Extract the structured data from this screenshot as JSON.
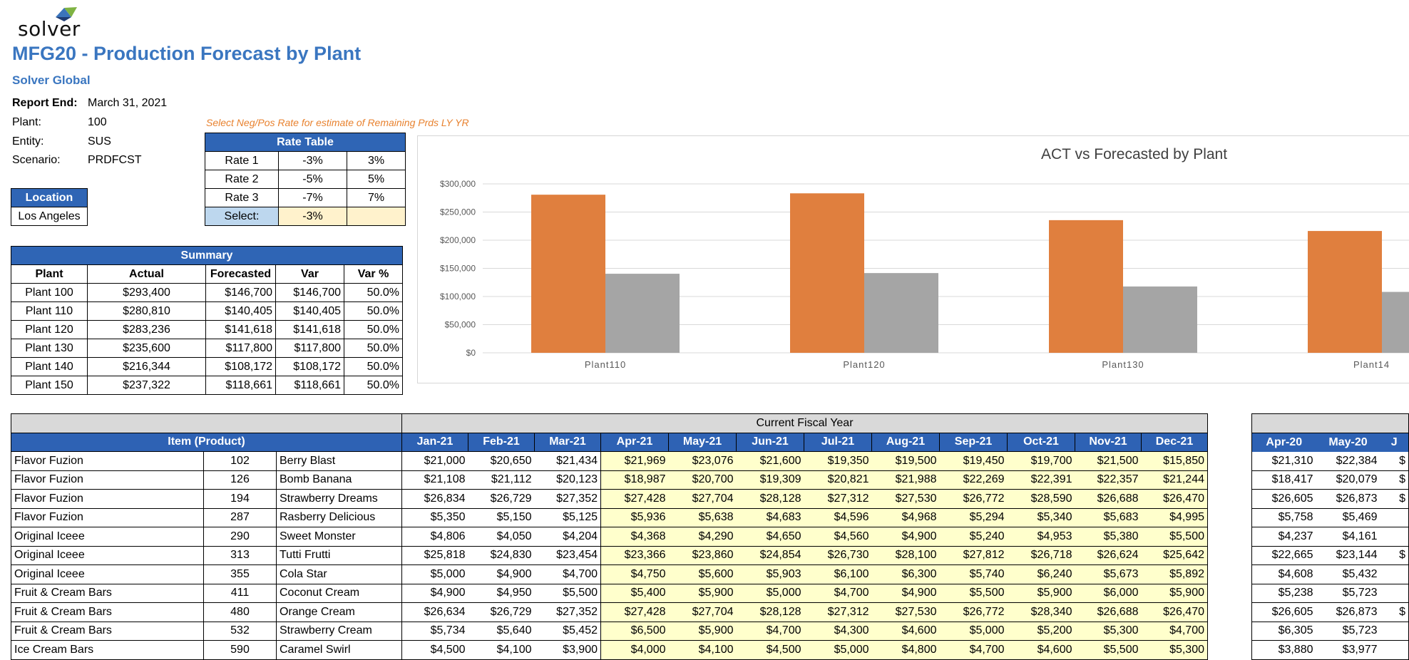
{
  "logo": {
    "text": "solver",
    "icon": "solver-triangle-logo-icon",
    "colors": [
      "#3b74bb",
      "#7fb342",
      "#1f3c73"
    ]
  },
  "report": {
    "title": "MFG20 - Production Forecast by Plant",
    "company": "Solver Global",
    "fields": [
      {
        "label": "Report End:",
        "value": "March 31, 2021"
      },
      {
        "label": "Plant:",
        "value": "100"
      },
      {
        "label": "Entity:",
        "value": "SUS"
      },
      {
        "label": "Scenario:",
        "value": "PRDFCST"
      }
    ],
    "hint": "Select Neg/Pos Rate for estimate of Remaining Prds LY YR"
  },
  "location": {
    "header": "Location",
    "value": "Los Angeles"
  },
  "rate_table": {
    "header": "Rate Table",
    "rows": [
      [
        "Rate 1",
        "-3%",
        "3%"
      ],
      [
        "Rate 2",
        "-5%",
        "5%"
      ],
      [
        "Rate 3",
        "-7%",
        "7%"
      ]
    ],
    "select_label": "Select:",
    "select_value": "-3%"
  },
  "summary": {
    "header": "Summary",
    "columns": [
      "Plant",
      "Actual",
      "Forecasted",
      "Var",
      "Var %"
    ],
    "rows": [
      [
        "Plant 100",
        "$293,400",
        "$146,700",
        "$146,700",
        "50.0%"
      ],
      [
        "Plant 110",
        "$280,810",
        "$140,405",
        "$140,405",
        "50.0%"
      ],
      [
        "Plant 120",
        "$283,236",
        "$141,618",
        "$141,618",
        "50.0%"
      ],
      [
        "Plant 130",
        "$235,600",
        "$117,800",
        "$117,800",
        "50.0%"
      ],
      [
        "Plant 140",
        "$216,344",
        "$108,172",
        "$108,172",
        "50.0%"
      ],
      [
        "Plant 150",
        "$237,322",
        "$118,661",
        "$118,661",
        "50.0%"
      ]
    ]
  },
  "chart_data": {
    "type": "bar",
    "title": "ACT vs Forecasted by Plant",
    "categories": [
      "Plant110",
      "Plant120",
      "Plant130",
      "Plant14"
    ],
    "series": [
      {
        "values": [
          280810,
          283236,
          235600,
          216344
        ],
        "color": "#e07f3e"
      },
      {
        "values": [
          140405,
          141618,
          117800,
          108172
        ],
        "color": "#a5a5a5"
      }
    ],
    "ylim": [
      0,
      300000
    ],
    "yticks": [
      "$0",
      "$50,000",
      "$100,000",
      "$150,000",
      "$200,000",
      "$250,000",
      "$300,000"
    ],
    "grid": true
  },
  "main_table": {
    "group_header": "Current Fiscal Year",
    "item_header": "Item (Product)",
    "months": [
      "Jan-21",
      "Feb-21",
      "Mar-21",
      "Apr-21",
      "May-21",
      "Jun-21",
      "Jul-21",
      "Aug-21",
      "Sep-21",
      "Oct-21",
      "Nov-21",
      "Dec-21"
    ],
    "rows": [
      [
        "Flavor Fuzion",
        "102",
        "Berry Blast",
        "$21,000",
        "$20,650",
        "$21,434",
        "$21,969",
        "$23,076",
        "$21,600",
        "$19,350",
        "$19,500",
        "$19,450",
        "$19,700",
        "$21,500",
        "$15,850"
      ],
      [
        "Flavor Fuzion",
        "126",
        "Bomb Banana",
        "$21,108",
        "$21,112",
        "$20,123",
        "$18,987",
        "$20,700",
        "$19,309",
        "$20,821",
        "$21,988",
        "$22,269",
        "$22,391",
        "$22,357",
        "$21,244"
      ],
      [
        "Flavor Fuzion",
        "194",
        "Strawberry Dreams",
        "$26,834",
        "$26,729",
        "$27,352",
        "$27,428",
        "$27,704",
        "$28,128",
        "$27,312",
        "$27,530",
        "$26,772",
        "$28,590",
        "$26,688",
        "$26,470"
      ],
      [
        "Flavor Fuzion",
        "287",
        "Rasberry Delicious",
        "$5,350",
        "$5,150",
        "$5,125",
        "$5,936",
        "$5,638",
        "$4,683",
        "$4,596",
        "$4,968",
        "$5,294",
        "$5,340",
        "$5,683",
        "$4,995"
      ],
      [
        "Original Iceee",
        "290",
        "Sweet Monster",
        "$4,806",
        "$4,050",
        "$4,204",
        "$4,368",
        "$4,290",
        "$4,650",
        "$4,560",
        "$4,900",
        "$5,240",
        "$4,953",
        "$5,380",
        "$5,500"
      ],
      [
        "Original Iceee",
        "313",
        "Tutti Frutti",
        "$25,818",
        "$24,830",
        "$23,454",
        "$23,366",
        "$23,860",
        "$24,854",
        "$26,730",
        "$28,100",
        "$27,812",
        "$26,718",
        "$26,624",
        "$25,642"
      ],
      [
        "Original Iceee",
        "355",
        "Cola Star",
        "$5,000",
        "$4,900",
        "$4,700",
        "$4,750",
        "$5,600",
        "$5,903",
        "$6,100",
        "$6,300",
        "$5,740",
        "$6,240",
        "$5,673",
        "$5,892"
      ],
      [
        "Fruit & Cream Bars",
        "411",
        "Coconut Cream",
        "$4,900",
        "$4,950",
        "$5,500",
        "$5,400",
        "$5,900",
        "$5,000",
        "$4,700",
        "$4,900",
        "$5,500",
        "$5,900",
        "$6,000",
        "$5,900"
      ],
      [
        "Fruit & Cream Bars",
        "480",
        "Orange Cream",
        "$26,634",
        "$26,729",
        "$27,352",
        "$27,428",
        "$27,704",
        "$28,128",
        "$27,312",
        "$27,530",
        "$26,772",
        "$28,340",
        "$26,688",
        "$26,470"
      ],
      [
        "Fruit & Cream Bars",
        "532",
        "Strawberry Cream",
        "$5,734",
        "$5,640",
        "$5,452",
        "$6,500",
        "$5,900",
        "$4,700",
        "$4,300",
        "$4,600",
        "$5,000",
        "$5,200",
        "$5,300",
        "$4,700"
      ],
      [
        "Ice Cream Bars",
        "590",
        "Caramel Swirl",
        "$4,500",
        "$4,100",
        "$3,900",
        "$4,000",
        "$4,100",
        "$4,500",
        "$5,000",
        "$4,800",
        "$4,700",
        "$4,600",
        "$5,500",
        "$5,300"
      ]
    ]
  },
  "prior_table": {
    "months": [
      "Apr-20",
      "May-20",
      "J"
    ],
    "rows": [
      [
        "$21,310",
        "$22,384",
        "$"
      ],
      [
        "$18,417",
        "$20,079",
        "$"
      ],
      [
        "$26,605",
        "$26,873",
        "$"
      ],
      [
        "$5,758",
        "$5,469",
        ""
      ],
      [
        "$4,237",
        "$4,161",
        ""
      ],
      [
        "$22,665",
        "$23,144",
        "$"
      ],
      [
        "$4,608",
        "$5,432",
        ""
      ],
      [
        "$5,238",
        "$5,723",
        ""
      ],
      [
        "$26,605",
        "$26,873",
        "$"
      ],
      [
        "$6,305",
        "$5,723",
        ""
      ],
      [
        "$3,880",
        "$3,977",
        ""
      ]
    ]
  }
}
